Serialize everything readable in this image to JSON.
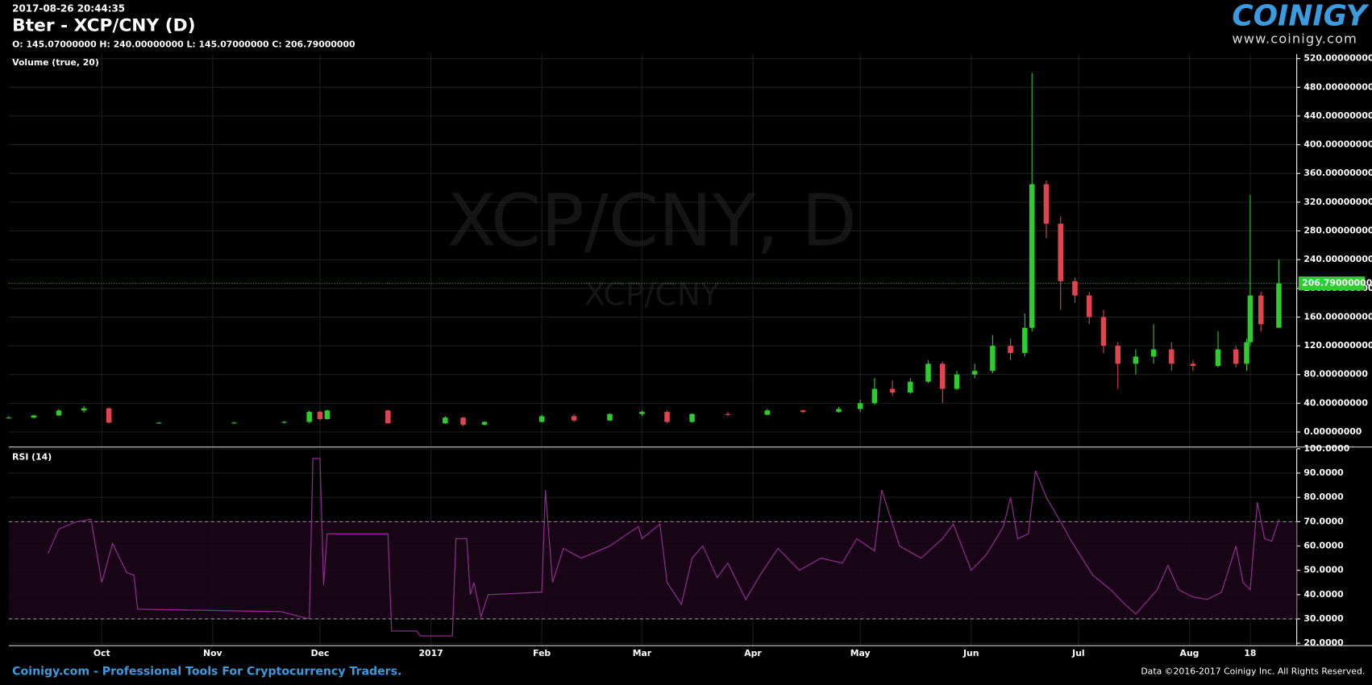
{
  "header": {
    "timestamp": "2017-08-26 20:44:35",
    "title": "Bter - XCP/CNY (D)",
    "ohlc": "O: 145.07000000 H: 240.00000000 L: 145.07000000 C: 206.79000000"
  },
  "logo": {
    "name": "COINIGY",
    "url": "www.coinigy.com"
  },
  "watermark": {
    "line1": "XCP/CNY, D",
    "line2": "XCP/CNY"
  },
  "footer": {
    "left": "Coinigy.com - Professional Tools For Cryptocurrency Traders.",
    "right": "Data ©2016-2017 Coinigy Inc. All Rights Reserved."
  },
  "chart_data": [
    {
      "type": "candlestick",
      "label": "Volume (true, 20)",
      "up_color": "#2ecc2e",
      "down_color": "#e0454f",
      "grid": true,
      "x": [
        "2016-09-05",
        "2016-09-12",
        "2016-09-19",
        "2016-09-26",
        "2016-10-03",
        "2016-10-17",
        "2016-11-07",
        "2016-11-21",
        "2016-11-28",
        "2016-12-01",
        "2016-12-03",
        "2016-12-20",
        "2017-01-05",
        "2017-01-10",
        "2017-01-16",
        "2017-02-01",
        "2017-02-10",
        "2017-02-20",
        "2017-03-01",
        "2017-03-08",
        "2017-03-15",
        "2017-03-25",
        "2017-04-05",
        "2017-04-15",
        "2017-04-25",
        "2017-05-01",
        "2017-05-05",
        "2017-05-10",
        "2017-05-15",
        "2017-05-20",
        "2017-05-24",
        "2017-05-28",
        "2017-06-02",
        "2017-06-07",
        "2017-06-12",
        "2017-06-16",
        "2017-06-18",
        "2017-06-22",
        "2017-06-26",
        "2017-06-30",
        "2017-07-04",
        "2017-07-08",
        "2017-07-12",
        "2017-07-17",
        "2017-07-22",
        "2017-07-27",
        "2017-08-02",
        "2017-08-09",
        "2017-08-14",
        "2017-08-17",
        "2017-08-18",
        "2017-08-21",
        "2017-08-26"
      ],
      "open": [
        20,
        20,
        23,
        30,
        33,
        13,
        13,
        13,
        14,
        28,
        18,
        30,
        12,
        20,
        10,
        14,
        22,
        16,
        25,
        28,
        14,
        25,
        24,
        30,
        28,
        32,
        40,
        60,
        55,
        70,
        95,
        60,
        80,
        85,
        120,
        110,
        145,
        345,
        290,
        210,
        190,
        160,
        120,
        95,
        105,
        115,
        95,
        92,
        115,
        95,
        125,
        190,
        145.07
      ],
      "high": [
        22,
        24,
        32,
        36,
        34,
        14,
        14,
        15,
        30,
        30,
        31,
        31,
        22,
        21,
        15,
        24,
        25,
        26,
        30,
        30,
        26,
        28,
        32,
        31,
        35,
        45,
        75,
        72,
        75,
        100,
        98,
        85,
        95,
        135,
        130,
        165,
        500,
        350,
        300,
        215,
        195,
        170,
        125,
        115,
        150,
        125,
        100,
        140,
        120,
        130,
        330,
        195,
        240
      ],
      "low": [
        19,
        19,
        22,
        27,
        12,
        12,
        12,
        12,
        12,
        16,
        17,
        12,
        11,
        8,
        9,
        13,
        14,
        15,
        22,
        12,
        13,
        22,
        23,
        26,
        27,
        28,
        38,
        50,
        53,
        68,
        40,
        58,
        75,
        82,
        100,
        105,
        140,
        270,
        170,
        180,
        150,
        110,
        60,
        80,
        95,
        85,
        85,
        90,
        90,
        85,
        120,
        140,
        145.07
      ],
      "close": [
        20,
        23,
        30,
        33,
        13,
        13,
        13,
        14,
        28,
        18,
        30,
        12,
        20,
        10,
        14,
        22,
        16,
        25,
        28,
        14,
        25,
        24,
        30,
        28,
        32,
        40,
        60,
        55,
        70,
        95,
        60,
        80,
        85,
        120,
        110,
        145,
        345,
        290,
        210,
        190,
        160,
        120,
        95,
        105,
        115,
        95,
        92,
        115,
        95,
        125,
        190,
        150,
        206.79
      ],
      "last_price": {
        "value": 206.79,
        "label": "206.79000000"
      },
      "xlim": [
        "2016-09-05",
        "2017-08-31"
      ],
      "xticks": [
        {
          "value": "2016-10-01",
          "label": "Oct"
        },
        {
          "value": "2016-11-01",
          "label": "Nov"
        },
        {
          "value": "2016-12-01",
          "label": "Dec"
        },
        {
          "value": "2017-01-01",
          "label": "2017"
        },
        {
          "value": "2017-02-01",
          "label": "Feb"
        },
        {
          "value": "2017-03-01",
          "label": "Mar"
        },
        {
          "value": "2017-04-01",
          "label": "Apr"
        },
        {
          "value": "2017-05-01",
          "label": "May"
        },
        {
          "value": "2017-06-01",
          "label": "Jun"
        },
        {
          "value": "2017-07-01",
          "label": "Jul"
        },
        {
          "value": "2017-08-01",
          "label": "Aug"
        },
        {
          "value": "2017-08-18",
          "label": "18"
        }
      ],
      "ylim": [
        -21,
        526
      ],
      "yticks": [
        {
          "value": 0,
          "label": "0.00000000"
        },
        {
          "value": 40,
          "label": "40.00000000"
        },
        {
          "value": 80,
          "label": "80.00000000"
        },
        {
          "value": 120,
          "label": "120.00000000"
        },
        {
          "value": 160,
          "label": "160.00000000"
        },
        {
          "value": 200,
          "label": "200.00000000"
        },
        {
          "value": 240,
          "label": "240.00000000"
        },
        {
          "value": 280,
          "label": "280.00000000"
        },
        {
          "value": 320,
          "label": "320.00000000"
        },
        {
          "value": 360,
          "label": "360.00000000"
        },
        {
          "value": 400,
          "label": "400.00000000"
        },
        {
          "value": 440,
          "label": "440.00000000"
        },
        {
          "value": 480,
          "label": "480.00000000"
        },
        {
          "value": 520,
          "label": "520.00000000"
        }
      ]
    },
    {
      "type": "line",
      "label": "RSI (14)",
      "color": "#8a2a8a",
      "band": [
        30,
        70
      ],
      "grid": true,
      "x": [
        "2016-09-16",
        "2016-09-19",
        "2016-09-24",
        "2016-09-28",
        "2016-10-01",
        "2016-10-04",
        "2016-10-08",
        "2016-10-10",
        "2016-10-11",
        "2016-11-20",
        "2016-11-28",
        "2016-11-29",
        "2016-12-01",
        "2016-12-02",
        "2016-12-03",
        "2016-12-20",
        "2016-12-21",
        "2016-12-28",
        "2016-12-29",
        "2017-01-07",
        "2017-01-08",
        "2017-01-11",
        "2017-01-12",
        "2017-01-13",
        "2017-01-15",
        "2017-01-17",
        "2017-02-01",
        "2017-02-02",
        "2017-02-04",
        "2017-02-07",
        "2017-02-12",
        "2017-02-20",
        "2017-02-28",
        "2017-03-01",
        "2017-03-06",
        "2017-03-08",
        "2017-03-12",
        "2017-03-15",
        "2017-03-18",
        "2017-03-22",
        "2017-03-25",
        "2017-03-30",
        "2017-04-03",
        "2017-04-08",
        "2017-04-14",
        "2017-04-20",
        "2017-04-26",
        "2017-04-30",
        "2017-05-05",
        "2017-05-07",
        "2017-05-12",
        "2017-05-18",
        "2017-05-24",
        "2017-05-27",
        "2017-06-01",
        "2017-06-05",
        "2017-06-08",
        "2017-06-10",
        "2017-06-12",
        "2017-06-14",
        "2017-06-17",
        "2017-06-19",
        "2017-06-22",
        "2017-06-26",
        "2017-06-29",
        "2017-07-02",
        "2017-07-05",
        "2017-07-10",
        "2017-07-14",
        "2017-07-17",
        "2017-07-20",
        "2017-07-23",
        "2017-07-26",
        "2017-07-29",
        "2017-08-02",
        "2017-08-06",
        "2017-08-10",
        "2017-08-14",
        "2017-08-16",
        "2017-08-18",
        "2017-08-20",
        "2017-08-22",
        "2017-08-24",
        "2017-08-26"
      ],
      "values": [
        57,
        67,
        70,
        71,
        45,
        61,
        49,
        48,
        34,
        33,
        30,
        96,
        96,
        44,
        65,
        65,
        25,
        25,
        23,
        23,
        63,
        63,
        40,
        45,
        31,
        40,
        41,
        83,
        45,
        59,
        55,
        60,
        68,
        63,
        69,
        45,
        36,
        55,
        60,
        47,
        53,
        38,
        48,
        59,
        50,
        55,
        53,
        63,
        58,
        83,
        60,
        55,
        63,
        69,
        50,
        56,
        63,
        68,
        80,
        63,
        65,
        91,
        80,
        70,
        62,
        55,
        48,
        42,
        36,
        32,
        37,
        42,
        52,
        42,
        39,
        38,
        41,
        60,
        45,
        42,
        78,
        63,
        62,
        71
      ],
      "xlim": [
        "2016-09-05",
        "2017-08-31"
      ],
      "xticks": [
        {
          "value": "2016-10-01",
          "label": "Oct"
        },
        {
          "value": "2016-11-01",
          "label": "Nov"
        },
        {
          "value": "2016-12-01",
          "label": "Dec"
        },
        {
          "value": "2017-01-01",
          "label": "2017"
        },
        {
          "value": "2017-02-01",
          "label": "Feb"
        },
        {
          "value": "2017-03-01",
          "label": "Mar"
        },
        {
          "value": "2017-04-01",
          "label": "Apr"
        },
        {
          "value": "2017-05-01",
          "label": "May"
        },
        {
          "value": "2017-06-01",
          "label": "Jun"
        },
        {
          "value": "2017-07-01",
          "label": "Jul"
        },
        {
          "value": "2017-08-01",
          "label": "Aug"
        },
        {
          "value": "2017-08-18",
          "label": "18"
        }
      ],
      "ylim": [
        19,
        100
      ],
      "yticks": [
        {
          "value": 20,
          "label": "20.0000"
        },
        {
          "value": 30,
          "label": "30.0000"
        },
        {
          "value": 40,
          "label": "40.0000"
        },
        {
          "value": 50,
          "label": "50.0000"
        },
        {
          "value": 60,
          "label": "60.0000"
        },
        {
          "value": 70,
          "label": "70.0000"
        },
        {
          "value": 80,
          "label": "80.0000"
        },
        {
          "value": 90,
          "label": "90.0000"
        },
        {
          "value": 100,
          "label": "100.0000"
        }
      ]
    }
  ]
}
